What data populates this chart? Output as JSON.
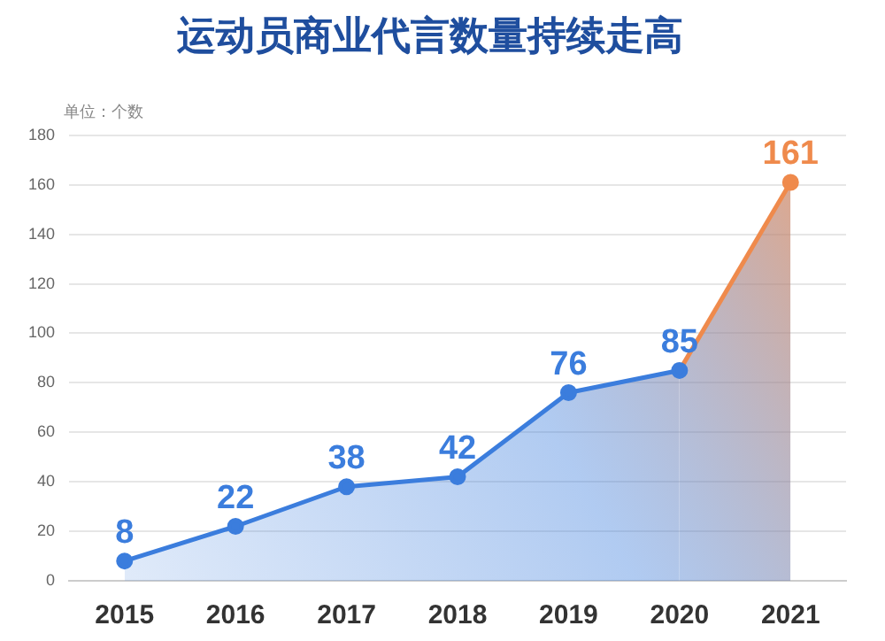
{
  "chart_data": {
    "type": "area",
    "title": "运动员商业代言数量持续走高",
    "annotations": [
      "单位：个数"
    ],
    "categories": [
      "2015",
      "2016",
      "2017",
      "2018",
      "2019",
      "2020",
      "2021"
    ],
    "values": [
      8,
      22,
      38,
      42,
      76,
      85,
      161
    ],
    "colors": [
      "#3b7ddd",
      "#3b7ddd",
      "#3b7ddd",
      "#3b7ddd",
      "#3b7ddd",
      "#3b7ddd",
      "#ef8a4c"
    ],
    "ylim": [
      0,
      180
    ],
    "yticks": [
      0,
      20,
      40,
      60,
      80,
      100,
      120,
      140,
      160,
      180
    ],
    "grid": "y",
    "data_labels": true,
    "marker": "circle",
    "legend": false
  }
}
